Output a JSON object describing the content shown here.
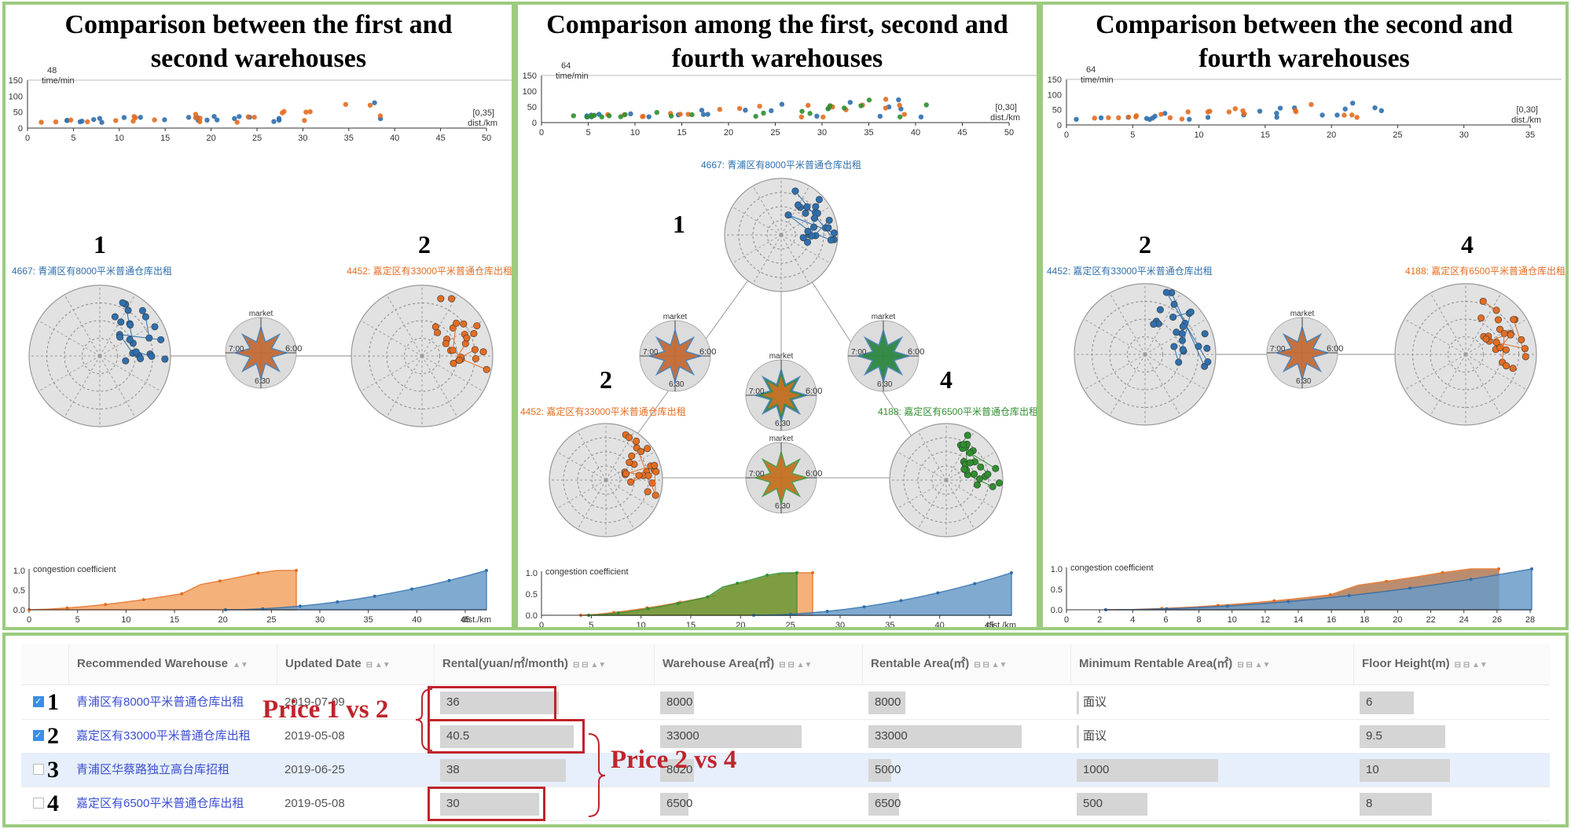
{
  "panels": [
    {
      "title_line1": "Comparison between the first and",
      "title_line2": "second warehouses",
      "scatter": {
        "time_label": "time/min",
        "time_max": "48",
        "range_label": "[0,35]",
        "dist_label": "dist./km",
        "yticks": [
          "150",
          "100",
          "50",
          "0"
        ],
        "xticks": [
          "0",
          "5",
          "10",
          "15",
          "20",
          "25",
          "30",
          "35",
          "40",
          "45",
          "50"
        ]
      },
      "warehouses": [
        {
          "number": "1",
          "label": "4667: 青浦区有8000平米普通仓库出租",
          "color": "#2f6fad"
        },
        {
          "number": "2",
          "label": "4452: 嘉定区有33000平米普通仓库出租",
          "color": "#e36d22"
        }
      ],
      "congestion": {
        "label": "congestion coefficient",
        "yticks": [
          "1.0",
          "0.5",
          "0.0"
        ],
        "xticks": [
          "0",
          "5",
          "10",
          "15",
          "20",
          "25",
          "30",
          "35",
          "40",
          "45"
        ],
        "dist_label": "dist./km"
      }
    },
    {
      "title_line1": "Comparison among the first, second and",
      "title_line2": "fourth warehouses",
      "scatter": {
        "time_label": "time/min",
        "time_max": "64",
        "range_label": "[0,30]",
        "dist_label": "dist./km",
        "yticks": [
          "150",
          "100",
          "50",
          "0"
        ],
        "xticks": [
          "0",
          "5",
          "10",
          "15",
          "20",
          "25",
          "30",
          "35",
          "40",
          "45",
          "50"
        ]
      },
      "warehouses": [
        {
          "number": "1",
          "label": "4667: 青浦区有8000平米普通仓库出租",
          "color": "#2f6fad"
        },
        {
          "number": "2",
          "label": "4452: 嘉定区有33000平米普通仓库出租",
          "color": "#e36d22"
        },
        {
          "number": "4",
          "label": "4188: 嘉定区有6500平米普通仓库出租",
          "color": "#2f8f2f"
        }
      ],
      "congestion": {
        "label": "congestion coefficient",
        "yticks": [
          "1.0",
          "0.5",
          "0.0"
        ],
        "xticks": [
          "0",
          "5",
          "10",
          "15",
          "20",
          "25",
          "30",
          "35",
          "40",
          "45"
        ],
        "dist_label": "dist./km"
      }
    },
    {
      "title_line1": "Comparison between the second and",
      "title_line2": "fourth warehouses",
      "scatter": {
        "time_label": "time/min",
        "time_max": "64",
        "range_label": "[0,30]",
        "dist_label": "dist./km",
        "yticks": [
          "150",
          "100",
          "50",
          "0"
        ],
        "xticks": [
          "0",
          "5",
          "10",
          "15",
          "20",
          "25",
          "30",
          "35"
        ]
      },
      "warehouses": [
        {
          "number": "2",
          "label": "4452: 嘉定区有33000平米普通仓库出租",
          "color": "#2f6fad"
        },
        {
          "number": "4",
          "label": "4188: 嘉定区有6500平米普通仓库出租",
          "color": "#e36d22"
        }
      ],
      "congestion": {
        "label": "congestion coefficient",
        "yticks": [
          "1.0",
          "0.5",
          "0.0"
        ],
        "xticks": [
          "0",
          "2",
          "4",
          "6",
          "8",
          "10",
          "12",
          "14",
          "16",
          "18",
          "20",
          "22",
          "24",
          "26",
          "28"
        ],
        "dist_label": ""
      }
    }
  ],
  "radar_labels": {
    "market": "market",
    "t600": "6:00",
    "t700": "7:00",
    "t630": "6:30"
  },
  "table": {
    "headers": [
      "Recommended Warehouse",
      "Updated Date",
      "Rental(yuan/㎡/month)",
      "Warehouse Area(㎡)",
      "Rentable Area(㎡)",
      "Minimum Rentable Area(㎡)",
      "Floor Height(m)"
    ],
    "rows": [
      {
        "num": "1",
        "checked": true,
        "name": "青浦区有8000平米普通仓库出租",
        "date": "2019-07-09",
        "rental": "36",
        "rental_frac": 0.89,
        "area": "8000",
        "area_frac": 0.24,
        "rentable": "8000",
        "rentable_frac": 0.24,
        "min_area": "面议",
        "min_frac": 0.0,
        "floor": "6",
        "floor_frac": 0.6
      },
      {
        "num": "2",
        "checked": true,
        "name": "嘉定区有33000平米普通仓库出租",
        "date": "2019-05-08",
        "rental": "40.5",
        "rental_frac": 1.0,
        "area": "33000",
        "area_frac": 1.0,
        "rentable": "33000",
        "rentable_frac": 1.0,
        "min_area": "面议",
        "min_frac": 0.0,
        "floor": "9.5",
        "floor_frac": 0.95
      },
      {
        "num": "3",
        "checked": false,
        "name": "青浦区华蔡路独立高台库招租",
        "date": "2019-06-25",
        "rental": "38",
        "rental_frac": 0.94,
        "area": "8020",
        "area_frac": 0.24,
        "rentable": "5000",
        "rentable_frac": 0.15,
        "min_area": "1000",
        "min_frac": 1.0,
        "floor": "10",
        "floor_frac": 1.0
      },
      {
        "num": "4",
        "checked": false,
        "name": "嘉定区有6500平米普通仓库出租",
        "date": "2019-05-08",
        "rental": "30",
        "rental_frac": 0.74,
        "area": "6500",
        "area_frac": 0.2,
        "rentable": "6500",
        "rentable_frac": 0.2,
        "min_area": "500",
        "min_frac": 0.5,
        "floor": "8",
        "floor_frac": 0.8
      }
    ]
  },
  "annotations": {
    "price_1_vs_2": "Price 1 vs 2",
    "price_2_vs_4": "Price 2 vs 4"
  },
  "colors": {
    "blue": "#2f6fad",
    "orange": "#e36d22",
    "green": "#2f8f2f",
    "panel_border": "#9ccb7f",
    "annotation_red": "#c0242c"
  }
}
